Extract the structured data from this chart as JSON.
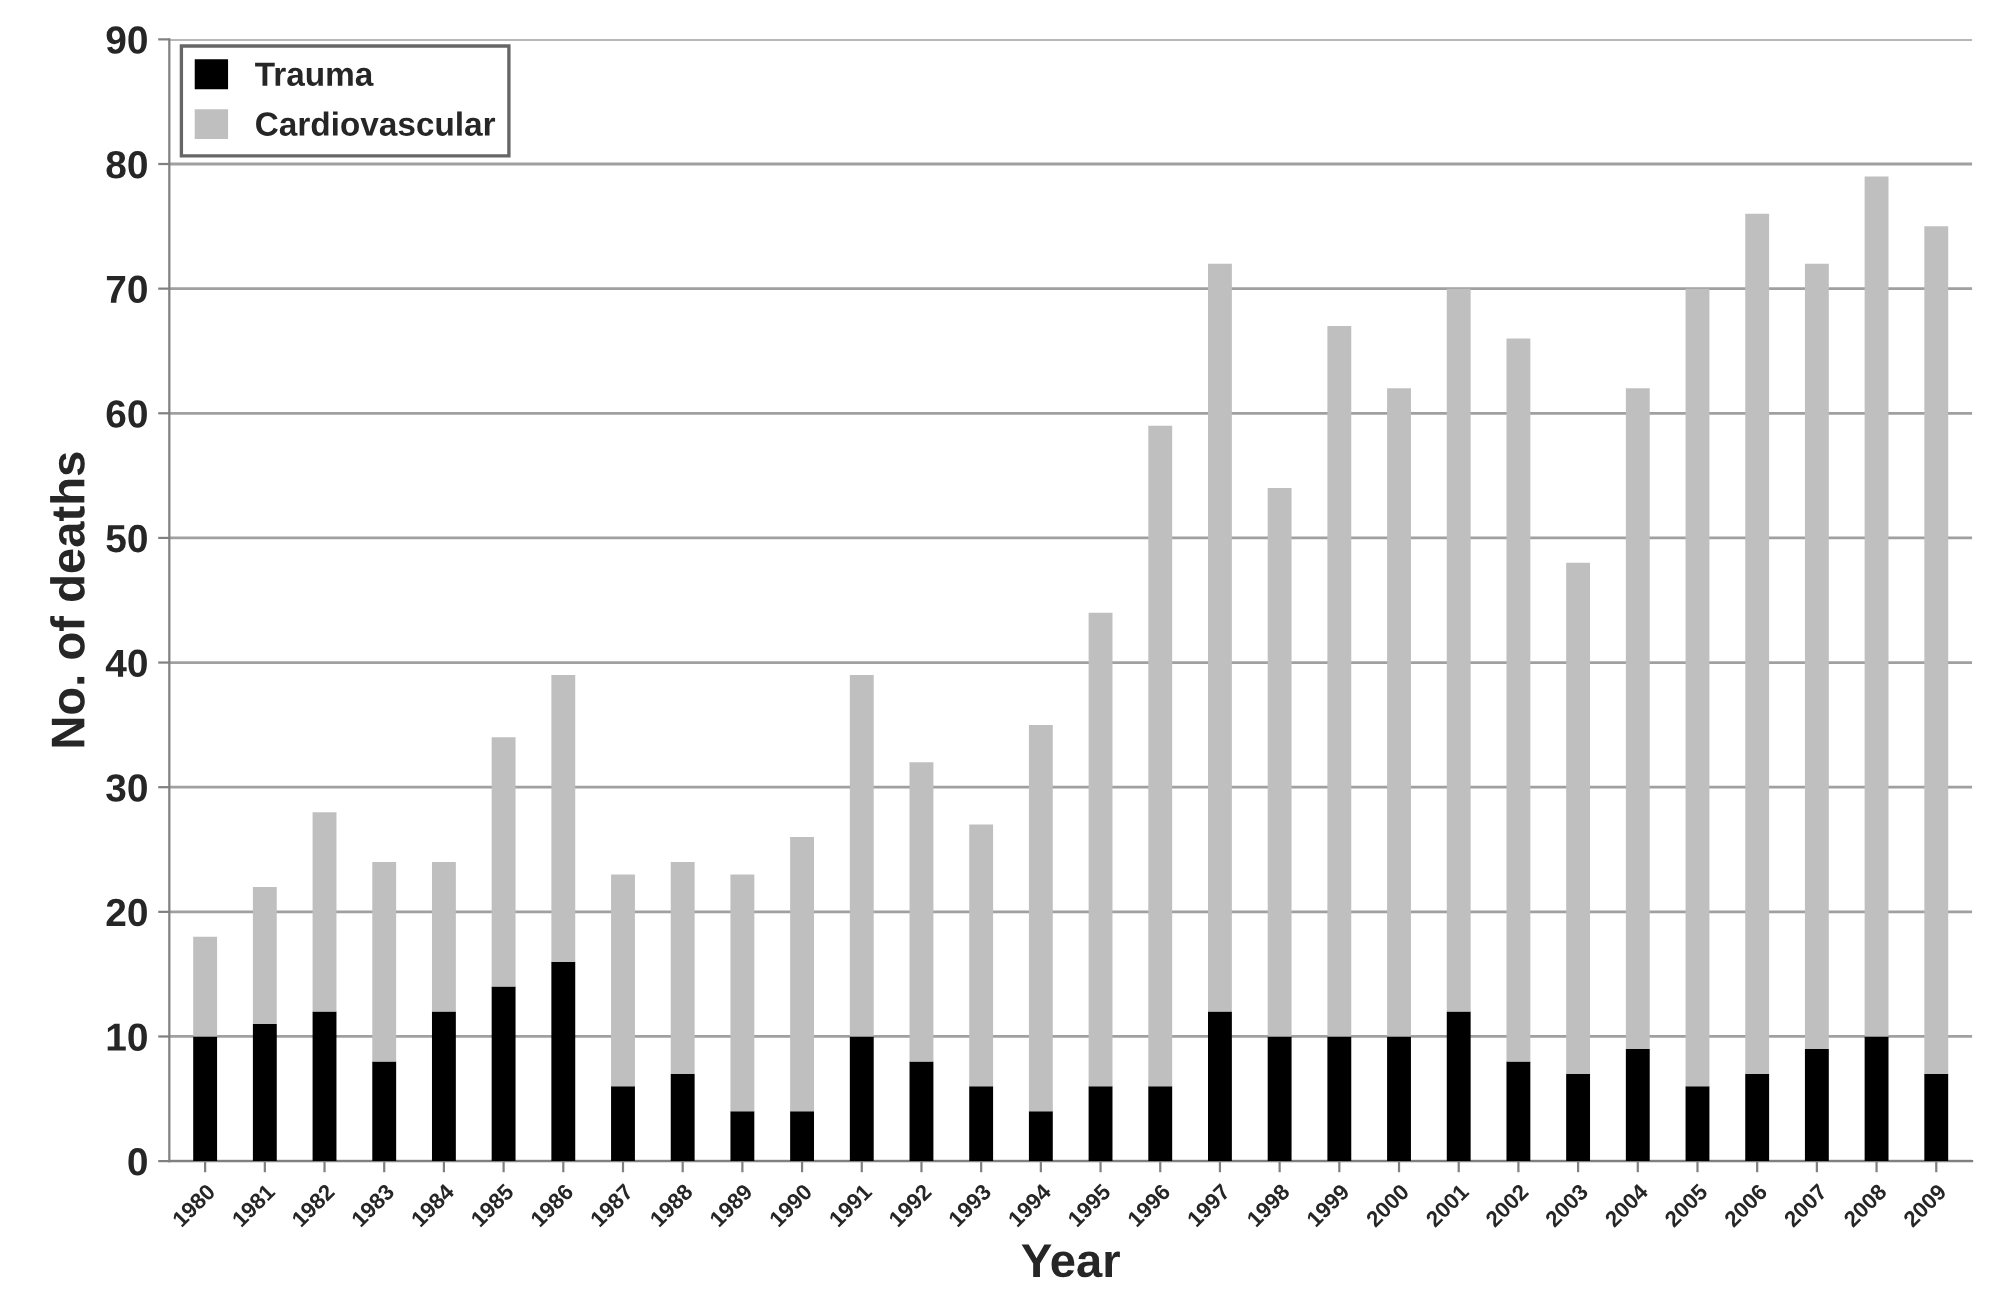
{
  "chart_data": {
    "type": "bar",
    "stacked": true,
    "xlabel": "Year",
    "ylabel": "No. of deaths",
    "categories": [
      "1980",
      "1981",
      "1982",
      "1983",
      "1984",
      "1985",
      "1986",
      "1987",
      "1988",
      "1989",
      "1990",
      "1991",
      "1992",
      "1993",
      "1994",
      "1995",
      "1996",
      "1997",
      "1998",
      "1999",
      "2000",
      "2001",
      "2002",
      "2003",
      "2004",
      "2005",
      "2006",
      "2007",
      "2008",
      "2009"
    ],
    "series": [
      {
        "name": "Trauma",
        "color": "#000000",
        "values": [
          10,
          11,
          12,
          8,
          12,
          14,
          16,
          6,
          7,
          4,
          4,
          10,
          8,
          6,
          4,
          6,
          6,
          12,
          10,
          10,
          10,
          12,
          8,
          7,
          9,
          6,
          7,
          9,
          10,
          7
        ]
      },
      {
        "name": "Cardiovascular",
        "color": "#bfbfbf",
        "values": [
          8,
          11,
          16,
          16,
          12,
          20,
          23,
          17,
          17,
          19,
          22,
          29,
          24,
          21,
          31,
          38,
          53,
          60,
          44,
          57,
          52,
          58,
          58,
          41,
          53,
          64,
          69,
          63,
          69,
          68
        ]
      }
    ],
    "ylim": [
      0,
      90
    ],
    "yticks": [
      0,
      10,
      20,
      30,
      40,
      50,
      60,
      70,
      80,
      90
    ],
    "grid": "y",
    "legend": "top left"
  }
}
